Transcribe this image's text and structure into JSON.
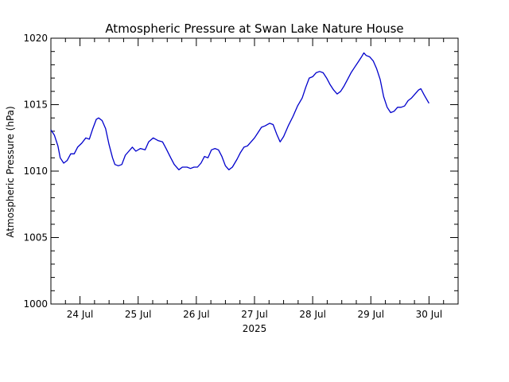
{
  "chart_data": {
    "type": "line",
    "title": "Atmospheric Pressure at Swan Lake Nature House",
    "xlabel": "2025",
    "ylabel": "Atmospheric Pressure (hPa)",
    "x_unit": "day of July 2025 (fractional)",
    "xlim": [
      23.5,
      30.5
    ],
    "ylim": [
      1000,
      1020
    ],
    "y_ticks": [
      1000,
      1005,
      1010,
      1015,
      1020
    ],
    "x_ticks": [
      {
        "day": 24,
        "label": "24 Jul"
      },
      {
        "day": 25,
        "label": "25 Jul"
      },
      {
        "day": 26,
        "label": "26 Jul"
      },
      {
        "day": 27,
        "label": "27 Jul"
      },
      {
        "day": 28,
        "label": "28 Jul"
      },
      {
        "day": 29,
        "label": "29 Jul"
      },
      {
        "day": 30,
        "label": "30 Jul"
      }
    ],
    "grid": false,
    "series": [
      {
        "color": "#0000cc",
        "points": [
          [
            23.5,
            1013.1
          ],
          [
            23.56,
            1012.7
          ],
          [
            23.62,
            1011.9
          ],
          [
            23.66,
            1011.0
          ],
          [
            23.72,
            1010.6
          ],
          [
            23.78,
            1010.8
          ],
          [
            23.84,
            1011.3
          ],
          [
            23.9,
            1011.3
          ],
          [
            23.96,
            1011.8
          ],
          [
            24.03,
            1012.1
          ],
          [
            24.1,
            1012.5
          ],
          [
            24.16,
            1012.4
          ],
          [
            24.22,
            1013.2
          ],
          [
            24.28,
            1013.9
          ],
          [
            24.32,
            1014.0
          ],
          [
            24.38,
            1013.8
          ],
          [
            24.44,
            1013.2
          ],
          [
            24.5,
            1012.0
          ],
          [
            24.56,
            1011.0
          ],
          [
            24.6,
            1010.5
          ],
          [
            24.66,
            1010.4
          ],
          [
            24.72,
            1010.5
          ],
          [
            24.78,
            1011.2
          ],
          [
            24.84,
            1011.5
          ],
          [
            24.9,
            1011.8
          ],
          [
            24.96,
            1011.5
          ],
          [
            25.04,
            1011.7
          ],
          [
            25.12,
            1011.6
          ],
          [
            25.18,
            1012.2
          ],
          [
            25.26,
            1012.5
          ],
          [
            25.34,
            1012.3
          ],
          [
            25.42,
            1012.2
          ],
          [
            25.48,
            1011.7
          ],
          [
            25.56,
            1011.0
          ],
          [
            25.62,
            1010.5
          ],
          [
            25.7,
            1010.1
          ],
          [
            25.76,
            1010.3
          ],
          [
            25.84,
            1010.3
          ],
          [
            25.9,
            1010.2
          ],
          [
            25.96,
            1010.3
          ],
          [
            26.02,
            1010.3
          ],
          [
            26.08,
            1010.6
          ],
          [
            26.14,
            1011.1
          ],
          [
            26.2,
            1011.0
          ],
          [
            26.26,
            1011.6
          ],
          [
            26.32,
            1011.7
          ],
          [
            26.38,
            1011.6
          ],
          [
            26.44,
            1011.1
          ],
          [
            26.5,
            1010.4
          ],
          [
            26.56,
            1010.1
          ],
          [
            26.62,
            1010.3
          ],
          [
            26.7,
            1010.9
          ],
          [
            26.76,
            1011.4
          ],
          [
            26.82,
            1011.8
          ],
          [
            26.88,
            1011.9
          ],
          [
            26.94,
            1012.2
          ],
          [
            27.0,
            1012.5
          ],
          [
            27.06,
            1012.9
          ],
          [
            27.12,
            1013.3
          ],
          [
            27.18,
            1013.4
          ],
          [
            27.26,
            1013.6
          ],
          [
            27.32,
            1013.5
          ],
          [
            27.38,
            1012.8
          ],
          [
            27.44,
            1012.2
          ],
          [
            27.5,
            1012.6
          ],
          [
            27.58,
            1013.4
          ],
          [
            27.66,
            1014.1
          ],
          [
            27.74,
            1014.9
          ],
          [
            27.82,
            1015.5
          ],
          [
            27.88,
            1016.3
          ],
          [
            27.94,
            1017.0
          ],
          [
            28.0,
            1017.1
          ],
          [
            28.06,
            1017.4
          ],
          [
            28.12,
            1017.5
          ],
          [
            28.18,
            1017.4
          ],
          [
            28.24,
            1017.0
          ],
          [
            28.3,
            1016.5
          ],
          [
            28.36,
            1016.1
          ],
          [
            28.42,
            1015.8
          ],
          [
            28.48,
            1016.0
          ],
          [
            28.54,
            1016.4
          ],
          [
            28.6,
            1016.9
          ],
          [
            28.66,
            1017.4
          ],
          [
            28.72,
            1017.8
          ],
          [
            28.78,
            1018.2
          ],
          [
            28.84,
            1018.6
          ],
          [
            28.88,
            1018.9
          ],
          [
            28.92,
            1018.7
          ],
          [
            28.98,
            1018.6
          ],
          [
            29.04,
            1018.3
          ],
          [
            29.1,
            1017.7
          ],
          [
            29.16,
            1016.9
          ],
          [
            29.22,
            1015.6
          ],
          [
            29.28,
            1014.8
          ],
          [
            29.34,
            1014.4
          ],
          [
            29.4,
            1014.5
          ],
          [
            29.46,
            1014.8
          ],
          [
            29.52,
            1014.8
          ],
          [
            29.58,
            1014.9
          ],
          [
            29.64,
            1015.3
          ],
          [
            29.7,
            1015.5
          ],
          [
            29.76,
            1015.8
          ],
          [
            29.82,
            1016.1
          ],
          [
            29.86,
            1016.2
          ],
          [
            29.92,
            1015.7
          ],
          [
            29.96,
            1015.4
          ],
          [
            30.0,
            1015.1
          ]
        ]
      }
    ]
  }
}
